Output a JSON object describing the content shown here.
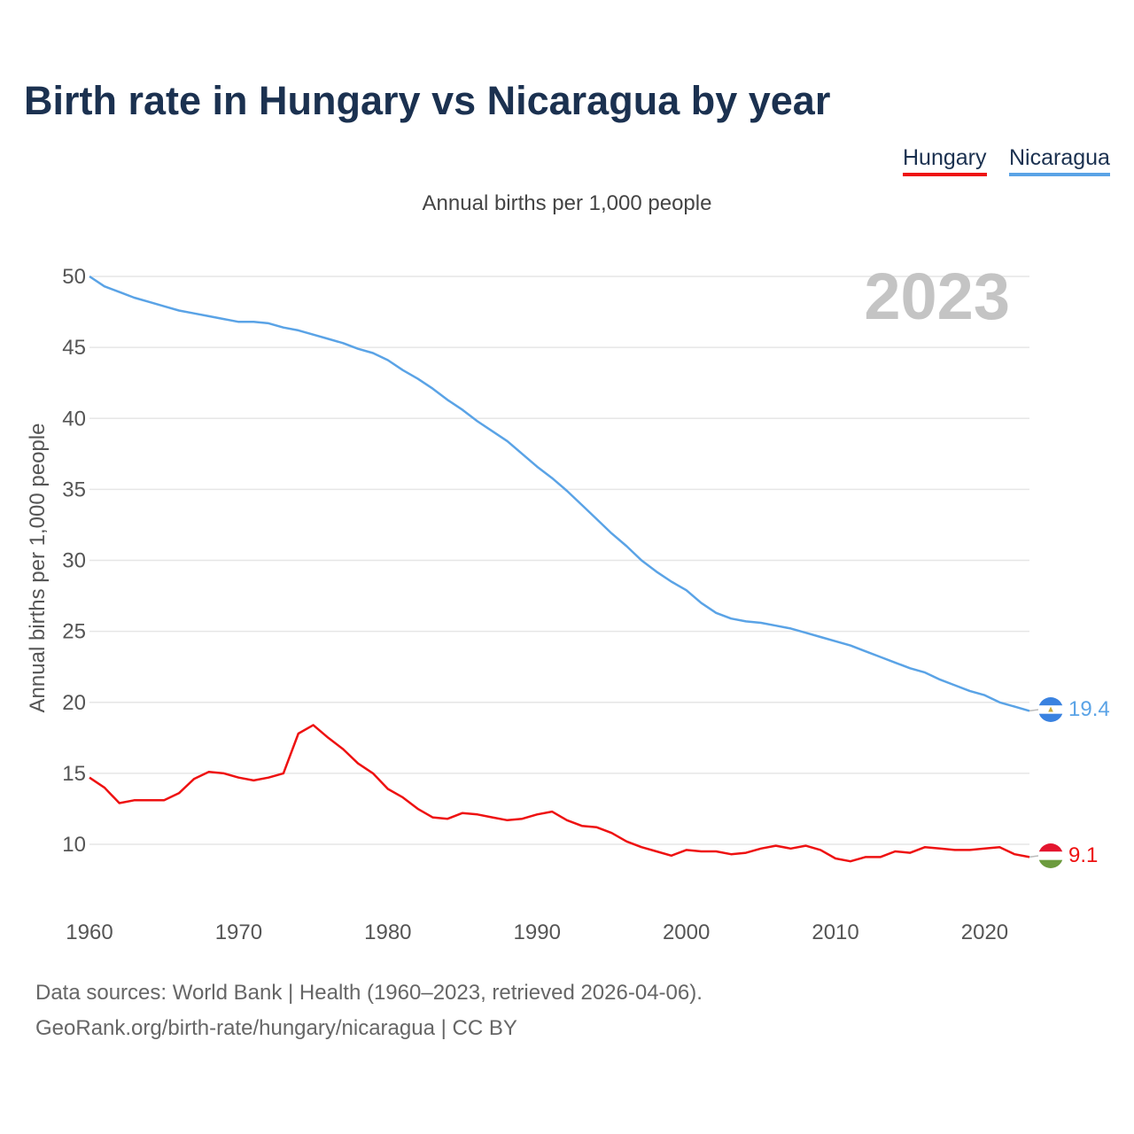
{
  "title": "Birth rate in Hungary vs Nicaragua by year",
  "legend": [
    {
      "name": "Hungary",
      "color": "#ee1111"
    },
    {
      "name": "Nicaragua",
      "color": "#5aa3e6"
    }
  ],
  "footer": {
    "source": "Data sources: World Bank | Health (1960–2023, retrieved 2026-04-06).",
    "link": "GeoRank.org/birth-rate/hungary/nicaragua | CC BY"
  },
  "chart_data": {
    "type": "line",
    "title": "Birth rate in Hungary vs Nicaragua by year",
    "subtitle": "Annual births per 1,000 people",
    "xlabel": "",
    "ylabel": "Annual births per 1,000 people",
    "watermark_year": "2023",
    "xlim": [
      1960,
      2023
    ],
    "ylim": [
      5,
      50
    ],
    "x_ticks": [
      1960,
      1970,
      1980,
      1990,
      2000,
      2010,
      2020
    ],
    "y_ticks": [
      10,
      15,
      20,
      25,
      30,
      35,
      40,
      45,
      50
    ],
    "grid": true,
    "legend_position": "top-right",
    "x": [
      1960,
      1961,
      1962,
      1963,
      1964,
      1965,
      1966,
      1967,
      1968,
      1969,
      1970,
      1971,
      1972,
      1973,
      1974,
      1975,
      1976,
      1977,
      1978,
      1979,
      1980,
      1981,
      1982,
      1983,
      1984,
      1985,
      1986,
      1987,
      1988,
      1989,
      1990,
      1991,
      1992,
      1993,
      1994,
      1995,
      1996,
      1997,
      1998,
      1999,
      2000,
      2001,
      2002,
      2003,
      2004,
      2005,
      2006,
      2007,
      2008,
      2009,
      2010,
      2011,
      2012,
      2013,
      2014,
      2015,
      2016,
      2017,
      2018,
      2019,
      2020,
      2021,
      2022,
      2023
    ],
    "series": [
      {
        "name": "Hungary",
        "color": "#ee1111",
        "end_label": "9.1",
        "values": [
          14.7,
          14.0,
          12.9,
          13.1,
          13.1,
          13.1,
          13.6,
          14.6,
          15.1,
          15.0,
          14.7,
          14.5,
          14.7,
          15.0,
          17.8,
          18.4,
          17.5,
          16.7,
          15.7,
          15.0,
          13.9,
          13.3,
          12.5,
          11.9,
          11.8,
          12.2,
          12.1,
          11.9,
          11.7,
          11.8,
          12.1,
          12.3,
          11.7,
          11.3,
          11.2,
          10.8,
          10.2,
          9.8,
          9.5,
          9.2,
          9.6,
          9.5,
          9.5,
          9.3,
          9.4,
          9.7,
          9.9,
          9.7,
          9.9,
          9.6,
          9.0,
          8.8,
          9.1,
          9.1,
          9.5,
          9.4,
          9.8,
          9.7,
          9.6,
          9.6,
          9.7,
          9.8,
          9.3,
          9.1
        ]
      },
      {
        "name": "Nicaragua",
        "color": "#5aa3e6",
        "end_label": "19.4",
        "values": [
          50.0,
          49.3,
          48.9,
          48.5,
          48.2,
          47.9,
          47.6,
          47.4,
          47.2,
          47.0,
          46.8,
          46.8,
          46.7,
          46.4,
          46.2,
          45.9,
          45.6,
          45.3,
          44.9,
          44.6,
          44.1,
          43.4,
          42.8,
          42.1,
          41.3,
          40.6,
          39.8,
          39.1,
          38.4,
          37.5,
          36.6,
          35.8,
          34.9,
          33.9,
          32.9,
          31.9,
          31.0,
          30.0,
          29.2,
          28.5,
          27.9,
          27.0,
          26.3,
          25.9,
          25.7,
          25.6,
          25.4,
          25.2,
          24.9,
          24.6,
          24.3,
          24.0,
          23.6,
          23.2,
          22.8,
          22.4,
          22.1,
          21.6,
          21.2,
          20.8,
          20.5,
          20.0,
          19.7,
          19.4
        ]
      }
    ]
  }
}
